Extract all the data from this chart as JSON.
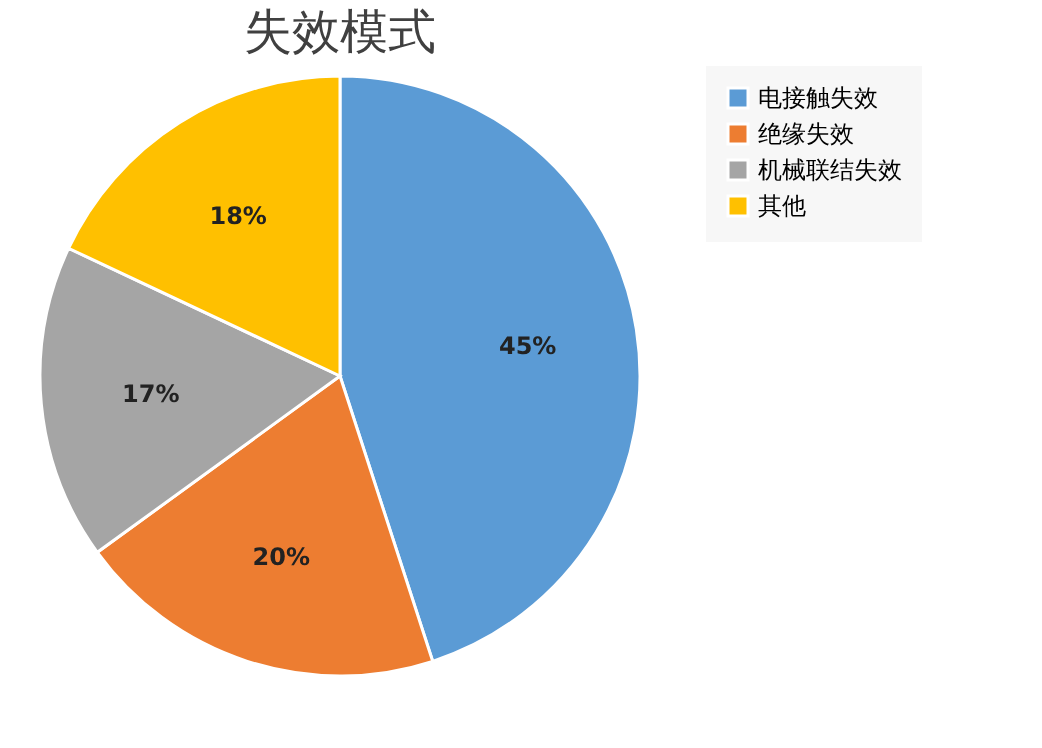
{
  "chart_data": {
    "type": "pie",
    "title": "失效模式",
    "categories": [
      "电接触失效",
      "绝缘失效",
      "机械联结失效",
      "其他"
    ],
    "values": [
      45,
      20,
      17,
      18
    ],
    "colors": [
      "#5b9bd5",
      "#ed7d31",
      "#a5a5a5",
      "#ffc000"
    ],
    "value_labels": [
      "45%",
      "20%",
      "17%",
      "18%"
    ],
    "legend": "right"
  }
}
